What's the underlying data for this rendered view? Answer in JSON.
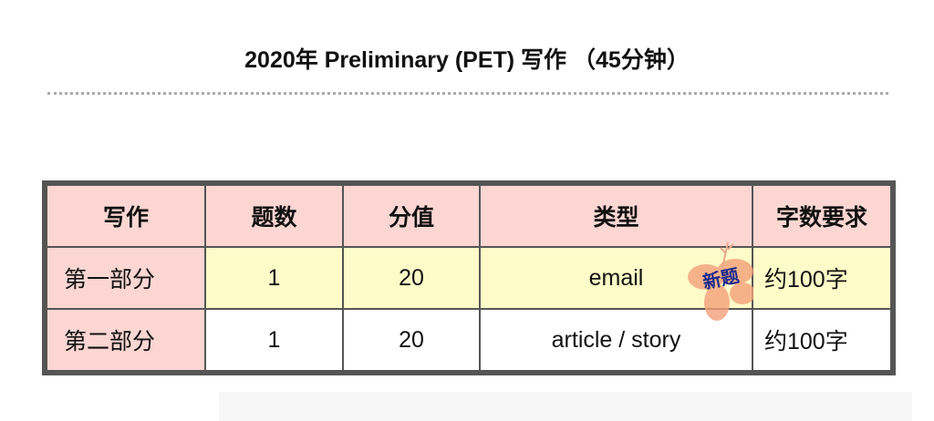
{
  "title": "2020年 Preliminary (PET) 写作 （45分钟）",
  "table": {
    "headers": [
      "写作",
      "题数",
      "分值",
      "类型",
      "字数要求"
    ],
    "rows": [
      [
        "第一部分",
        "1",
        "20",
        "email",
        "约100字"
      ],
      [
        "第二部分",
        "1",
        "20",
        "article / story",
        "约100字"
      ]
    ],
    "badge": "新题"
  },
  "colors": {
    "header_bg": "#fbd6d2",
    "highlight_row_bg": "#fdfbc8",
    "border": "#555555",
    "badge_text": "#1c2a8c",
    "flower": "#f4a07a"
  }
}
